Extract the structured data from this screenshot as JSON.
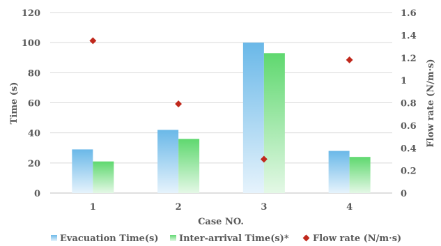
{
  "chart_data": {
    "type": "bar",
    "categories": [
      "1",
      "2",
      "3",
      "4"
    ],
    "xlabel": "Case NO.",
    "ylabel": "Time (s)",
    "y2label": "Flow rate (N/m·s)",
    "ylim": [
      0,
      120
    ],
    "y2lim": [
      0,
      1.6
    ],
    "yticks": [
      "0",
      "20",
      "40",
      "60",
      "80",
      "100",
      "120"
    ],
    "y2ticks": [
      "0",
      "0.2",
      "0.4",
      "0.6",
      "0.8",
      "1",
      "1.2",
      "1.4",
      "1.6"
    ],
    "series": [
      {
        "name": "Evacuation Time(s)",
        "kind": "bar",
        "axis": "left",
        "values": [
          29,
          42,
          100,
          28
        ],
        "color": "#6ab8e8"
      },
      {
        "name": "Inter-arrival Time(s)*",
        "kind": "bar",
        "axis": "left",
        "values": [
          21,
          36,
          93,
          24
        ],
        "color": "#5fd86f"
      },
      {
        "name": "Flow rate (N/m·s)",
        "kind": "scatter",
        "axis": "right",
        "values": [
          1.35,
          0.79,
          0.3,
          1.18
        ],
        "color": "#c0281c"
      }
    ],
    "legend_position": "bottom",
    "grid": "horizontal"
  }
}
